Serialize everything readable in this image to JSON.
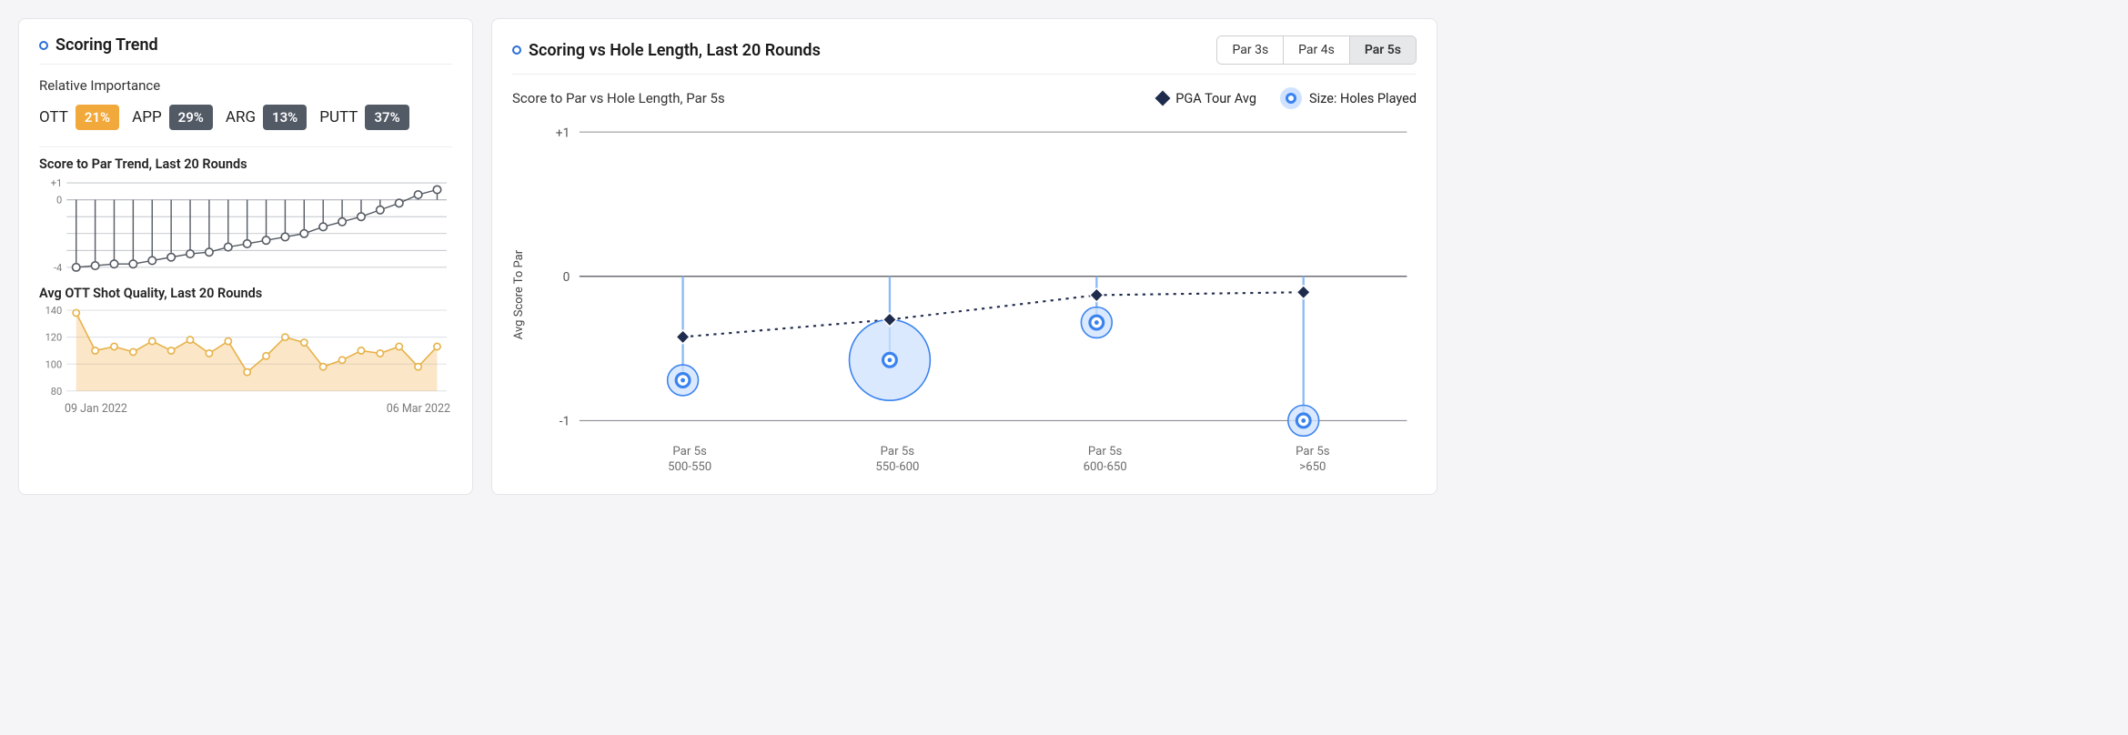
{
  "left_card": {
    "title": "Scoring Trend",
    "sublabel": "Relative Importance",
    "importance": [
      {
        "name": "OTT",
        "value": "21%",
        "bg": "#f2a93b"
      },
      {
        "name": "APP",
        "value": "29%",
        "bg": "#525a66"
      },
      {
        "name": "ARG",
        "value": "13%",
        "bg": "#525a66"
      },
      {
        "name": "PUTT",
        "value": "37%",
        "bg": "#525a66"
      }
    ],
    "score_trend": {
      "title": "Score to Par Trend, Last 20 Rounds",
      "ylim": [
        -4,
        1
      ],
      "yticks": [
        -4,
        0,
        1
      ],
      "values": [
        -4.0,
        -3.9,
        -3.8,
        -3.8,
        -3.6,
        -3.4,
        -3.2,
        -3.1,
        -2.8,
        -2.6,
        -2.4,
        -2.2,
        -2.0,
        -1.6,
        -1.3,
        -1.0,
        -0.6,
        -0.2,
        0.3,
        0.6
      ],
      "grid_color": "#b9bcc2",
      "line_color": "#555b63",
      "point_fill": "#ffffff",
      "date_start": "09 Jan 2022",
      "date_end": "06 Mar 2022"
    },
    "ott_quality": {
      "title": "Avg OTT Shot Quality, Last 20 Rounds",
      "ylim": [
        80,
        140
      ],
      "yticks": [
        80,
        100,
        120,
        140
      ],
      "values": [
        138,
        110,
        113,
        109,
        117,
        110,
        118,
        108,
        117,
        94,
        106,
        120,
        116,
        98,
        103,
        110,
        108,
        113,
        98,
        113
      ],
      "grid_color": "#d9dce1",
      "line_color": "#e7b24a",
      "area_fill": "#f2a93b",
      "area_opacity": 0.28,
      "point_fill": "#ffffff"
    }
  },
  "right_card": {
    "title": "Scoring vs Hole Length, Last 20 Rounds",
    "tabs": [
      "Par 3s",
      "Par 4s",
      "Par 5s"
    ],
    "active_tab": "Par 5s",
    "subtitle": "Score to Par vs Hole Length, Par 5s",
    "y_axis_label": "Avg Score To Par",
    "legend": {
      "pga": "PGA Tour Avg",
      "size": "Size: Holes Played"
    },
    "chart": {
      "ylim": [
        -1,
        1
      ],
      "yticks": [
        -1,
        0,
        1
      ],
      "grid_color": "#8d8f94",
      "zero_line_color": "#6a6c70",
      "stem_color": "#8abaf5",
      "pga_line_color": "#1f2c4d",
      "pga_fill": "#1f2c4d",
      "bubble_stroke": "#3a83ef",
      "bubble_fill": "#cfe2ff",
      "bubble_center": "#3a83ef",
      "categories": [
        {
          "line1": "Par 5s",
          "line2": "500-550",
          "player": -0.72,
          "pga": -0.42,
          "radius": 16
        },
        {
          "line1": "Par 5s",
          "line2": "550-600",
          "player": -0.58,
          "pga": -0.3,
          "radius": 42
        },
        {
          "line1": "Par 5s",
          "line2": "600-650",
          "player": -0.32,
          "pga": -0.13,
          "radius": 16
        },
        {
          "line1": "Par 5s",
          "line2": ">650",
          "player": -1.0,
          "pga": -0.11,
          "radius": 16
        }
      ]
    }
  }
}
